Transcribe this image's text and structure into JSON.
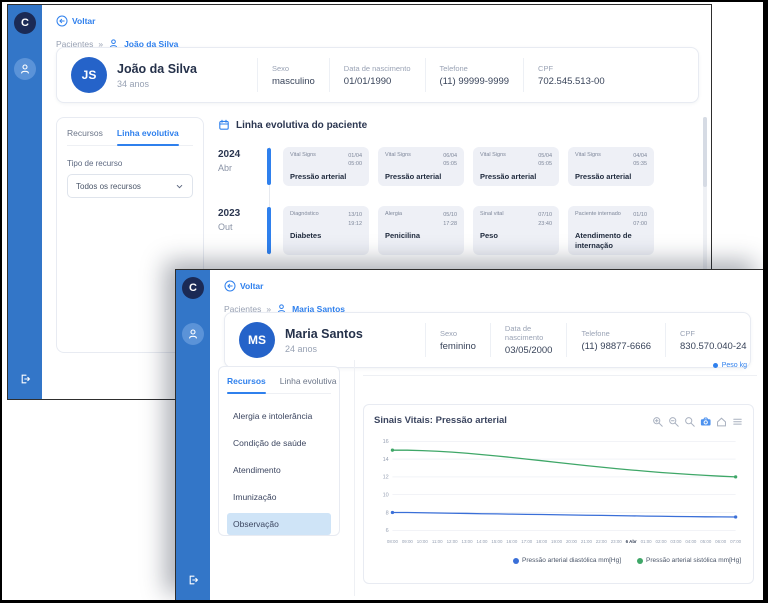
{
  "app": {
    "logo_letter": "C"
  },
  "colors": {
    "sidebar": "#3376c8",
    "accent": "#2f80ed",
    "logo_bg": "#1b2a55",
    "avatar": "#2563c9",
    "event_card_bg": "#eef0f6",
    "active_menu_bg": "#cfe4f7",
    "systolic_green": "#3fa768",
    "diastolic_blue": "#3a6fd8"
  },
  "back_window": {
    "nav": {
      "back": "Voltar",
      "breadcrumb_root": "Pacientes",
      "breadcrumb_sep": "»",
      "breadcrumb_current": "João da Silva"
    },
    "patient": {
      "initials": "JS",
      "name": "João da Silva",
      "age": "34 anos",
      "fields": [
        {
          "label": "Sexo",
          "value": "masculino"
        },
        {
          "label": "Data de nascimento",
          "value": "01/01/1990"
        },
        {
          "label": "Telefone",
          "value": "(11) 99999-9999"
        },
        {
          "label": "CPF",
          "value": "702.545.513-00"
        }
      ]
    },
    "tabs": [
      {
        "label": "Recursos",
        "active": false
      },
      {
        "label": "Linha evolutiva",
        "active": true
      }
    ],
    "filter": {
      "label": "Tipo de recurso",
      "value": "Todos os recursos"
    },
    "timeline_title": "Linha evolutiva do paciente",
    "timeline": [
      {
        "year": "2024",
        "month": "Abr",
        "events": [
          {
            "type": "Vital Signs",
            "title": "Pressão arterial",
            "date": "01/04",
            "time": "05:00"
          },
          {
            "type": "Vital Signs",
            "title": "Pressão arterial",
            "date": "06/04",
            "time": "05:05"
          },
          {
            "type": "Vital Signs",
            "title": "Pressão arterial",
            "date": "05/04",
            "time": "05:05"
          },
          {
            "type": "Vital Signs",
            "title": "Pressão arterial",
            "date": "04/04",
            "time": "05:35"
          }
        ]
      },
      {
        "year": "2023",
        "month": "Out",
        "events": [
          {
            "type": "Diagnóstico",
            "title": "Diabetes",
            "date": "13/10",
            "time": "19:12"
          },
          {
            "type": "Alergia",
            "title": "Penicilina",
            "date": "05/10",
            "time": "17:28"
          },
          {
            "type": "Sinal vital",
            "title": "Peso",
            "date": "07/10",
            "time": "23:40"
          },
          {
            "type": "Paciente internado",
            "title": "Atendimento de internação",
            "date": "01/10",
            "time": "07:00"
          }
        ]
      }
    ]
  },
  "front_window": {
    "nav": {
      "back": "Voltar",
      "breadcrumb_root": "Pacientes",
      "breadcrumb_sep": "»",
      "breadcrumb_current": "Maria Santos"
    },
    "patient": {
      "initials": "MS",
      "name": "Maria Santos",
      "age": "24 anos",
      "fields": [
        {
          "label": "Sexo",
          "value": "feminino"
        },
        {
          "label": "Data de nascimento",
          "value": "03/05/2000"
        },
        {
          "label": "Telefone",
          "value": "(11) 98877-6666"
        },
        {
          "label": "CPF",
          "value": "830.570.040-24"
        }
      ]
    },
    "tabs": [
      {
        "label": "Recursos",
        "active": true
      },
      {
        "label": "Linha evolutiva",
        "active": false
      }
    ],
    "menu": {
      "items": [
        "Alergia e intolerância",
        "Condição de saúde",
        "Atendimento",
        "Imunização",
        "Observação"
      ],
      "active_index": 4
    },
    "mini_legend": "Peso kg",
    "chart_toolbar": [
      "zoom-in-icon",
      "zoom-out-icon",
      "search-icon",
      "camera-icon",
      "home-icon",
      "menu-icon"
    ]
  },
  "chart_data": {
    "type": "line",
    "title": "Sinais Vitais: Pressão arterial",
    "x_ticks": [
      "08:00",
      "09:00",
      "10:00",
      "11:00",
      "12:00",
      "13:00",
      "14:00",
      "15:00",
      "16:00",
      "17:00",
      "18:00",
      "19:00",
      "20:00",
      "21:00",
      "22:00",
      "23:00",
      "6 Abr",
      "01:00",
      "02:00",
      "03:00",
      "04:00",
      "05:00",
      "06:00",
      "07:00"
    ],
    "date_tick": "6 Abr",
    "y_ticks": [
      6,
      8,
      10,
      12,
      14,
      16
    ],
    "ylim": [
      6,
      16
    ],
    "grid": true,
    "legend_position": "bottom-right",
    "series": [
      {
        "name": "Pressão arterial diastólica mm[Hg]",
        "color": "#3a6fd8",
        "values": [
          8,
          8,
          7.98,
          7.95,
          7.92,
          7.9,
          7.87,
          7.85,
          7.82,
          7.8,
          7.78,
          7.75,
          7.72,
          7.7,
          7.68,
          7.65,
          7.63,
          7.6,
          7.58,
          7.56,
          7.54,
          7.52,
          7.51,
          7.5
        ]
      },
      {
        "name": "Pressão arterial sistólica mm[Hg]",
        "color": "#3fa768",
        "values": [
          15,
          15,
          14.95,
          14.88,
          14.78,
          14.65,
          14.5,
          14.35,
          14.18,
          14,
          13.82,
          13.63,
          13.45,
          13.27,
          13.1,
          12.93,
          12.78,
          12.64,
          12.5,
          12.38,
          12.27,
          12.17,
          12.08,
          12
        ]
      }
    ]
  }
}
